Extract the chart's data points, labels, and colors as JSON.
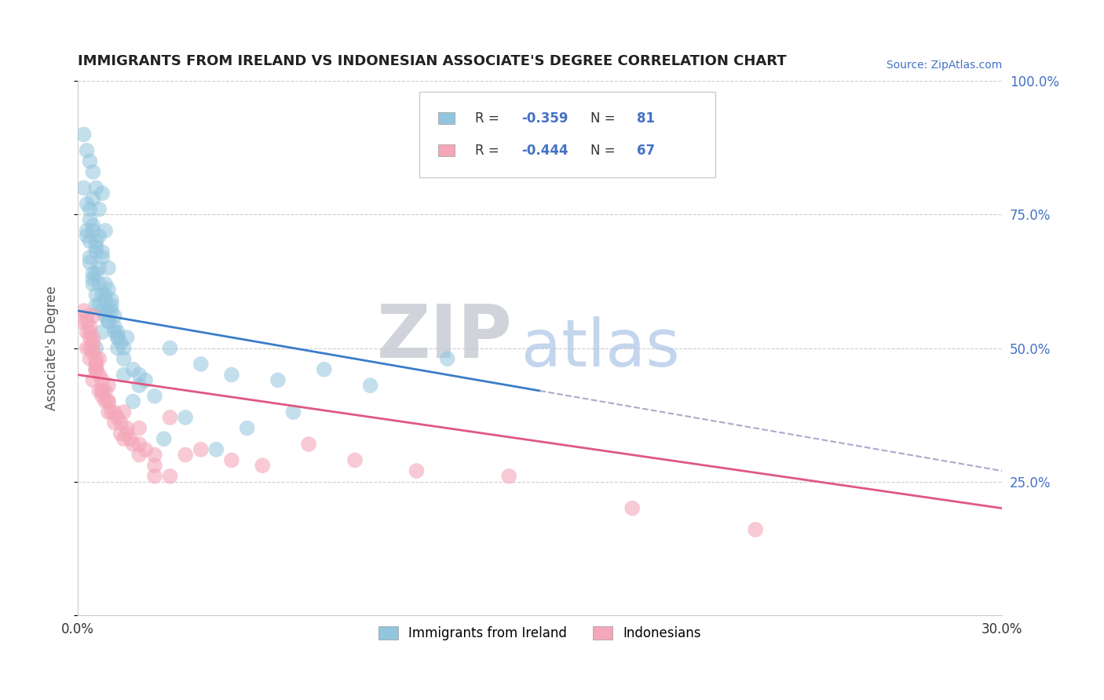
{
  "title": "IMMIGRANTS FROM IRELAND VS INDONESIAN ASSOCIATE'S DEGREE CORRELATION CHART",
  "source_text": "Source: ZipAtlas.com",
  "ylabel": "Associate's Degree",
  "xlim": [
    0.0,
    30.0
  ],
  "ylim": [
    0.0,
    100.0
  ],
  "x_ticks": [
    0,
    30
  ],
  "x_tick_labels": [
    "0.0%",
    "30.0%"
  ],
  "y_ticks_right": [
    25,
    50,
    75,
    100
  ],
  "y_tick_labels_right": [
    "25.0%",
    "50.0%",
    "75.0%",
    "100.0%"
  ],
  "legend1_label": "Immigrants from Ireland",
  "legend2_label": "Indonesians",
  "r1": -0.359,
  "n1": 81,
  "r2": -0.444,
  "n2": 67,
  "color_blue": "#92c5de",
  "color_pink": "#f4a7b9",
  "color_line_blue": "#3a7dc9",
  "color_line_pink": "#e05880",
  "color_dashed": "#aaaacc",
  "watermark_ZIP": "ZIP",
  "watermark_atlas": "atlas",
  "background_color": "#ffffff",
  "grid_color": "#cccccc",
  "blue_line_x0": 0.0,
  "blue_line_y0": 57.0,
  "blue_line_x1": 30.0,
  "blue_line_y1": 27.0,
  "pink_line_x0": 0.0,
  "pink_line_y0": 45.0,
  "pink_line_x1": 30.0,
  "pink_line_y1": 20.0,
  "blue_scatter_x": [
    0.2,
    0.5,
    0.8,
    0.4,
    0.6,
    0.3,
    0.7,
    0.9,
    0.5,
    0.4,
    0.6,
    0.8,
    1.0,
    0.5,
    0.6,
    0.7,
    0.8,
    0.5,
    0.6,
    0.4,
    0.7,
    0.6,
    0.5,
    0.4,
    0.3,
    0.6,
    0.7,
    0.8,
    0.9,
    1.0,
    1.2,
    1.1,
    1.3,
    1.4,
    1.5,
    0.9,
    1.0,
    1.2,
    1.3,
    1.0,
    1.1,
    1.2,
    0.9,
    1.3,
    1.5,
    1.6,
    1.8,
    2.0,
    2.2,
    2.5,
    3.0,
    4.0,
    5.0,
    6.5,
    8.0,
    9.5,
    12.0,
    0.3,
    0.4,
    0.2,
    0.5,
    0.8,
    0.6,
    0.4,
    0.3,
    0.5,
    0.7,
    0.9,
    1.1,
    1.3,
    1.0,
    0.8,
    0.6,
    1.5,
    1.8,
    2.0,
    3.5,
    5.5,
    7.0,
    2.8,
    4.5
  ],
  "blue_scatter_y": [
    90,
    83,
    79,
    85,
    80,
    87,
    76,
    72,
    78,
    74,
    70,
    68,
    65,
    72,
    69,
    71,
    67,
    73,
    68,
    76,
    65,
    64,
    62,
    67,
    71,
    60,
    58,
    57,
    56,
    55,
    54,
    58,
    53,
    51,
    50,
    60,
    57,
    53,
    52,
    61,
    59,
    56,
    62,
    50,
    48,
    52,
    46,
    45,
    44,
    41,
    50,
    47,
    45,
    44,
    46,
    43,
    48,
    77,
    70,
    80,
    63,
    60,
    58,
    66,
    72,
    64,
    62,
    59,
    57,
    52,
    55,
    53,
    50,
    45,
    40,
    43,
    37,
    35,
    38,
    33,
    31
  ],
  "pink_scatter_x": [
    0.1,
    0.2,
    0.3,
    0.4,
    0.5,
    0.3,
    0.4,
    0.5,
    0.6,
    0.4,
    0.5,
    0.6,
    0.7,
    0.5,
    0.6,
    0.7,
    0.3,
    0.4,
    0.5,
    0.6,
    0.7,
    0.8,
    0.9,
    1.0,
    0.8,
    0.9,
    1.0,
    1.1,
    1.2,
    1.3,
    1.4,
    1.5,
    1.6,
    1.7,
    1.8,
    2.0,
    2.2,
    2.5,
    3.0,
    3.5,
    4.0,
    5.0,
    6.0,
    7.5,
    9.0,
    11.0,
    14.0,
    18.0,
    22.0,
    0.3,
    0.5,
    0.6,
    0.8,
    1.0,
    1.2,
    1.4,
    1.6,
    2.0,
    2.5,
    3.0,
    0.4,
    0.6,
    0.8,
    1.0,
    1.5,
    2.0,
    2.5
  ],
  "pink_scatter_y": [
    55,
    57,
    53,
    52,
    56,
    50,
    48,
    51,
    47,
    54,
    49,
    47,
    45,
    52,
    46,
    48,
    56,
    50,
    44,
    46,
    42,
    44,
    40,
    43,
    41,
    42,
    40,
    38,
    36,
    37,
    34,
    38,
    35,
    33,
    32,
    35,
    31,
    30,
    37,
    30,
    31,
    29,
    28,
    32,
    29,
    27,
    26,
    20,
    16,
    55,
    50,
    48,
    42,
    40,
    38,
    36,
    34,
    32,
    28,
    26,
    53,
    46,
    42,
    38,
    33,
    30,
    26
  ]
}
